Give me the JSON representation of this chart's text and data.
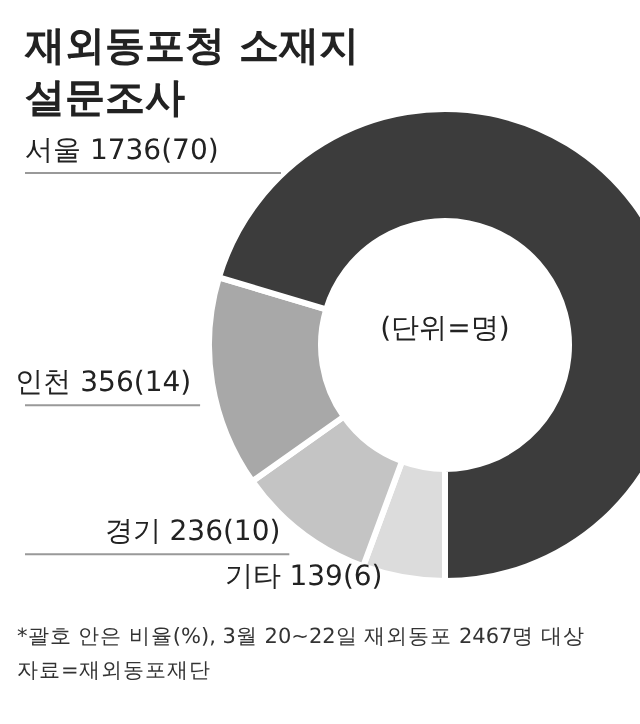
{
  "chart_data": {
    "type": "donut",
    "title": "재외동포청 소재지 설문조사",
    "categories": [
      "서울",
      "인천",
      "경기",
      "기타"
    ],
    "values": [
      1736,
      356,
      236,
      139
    ],
    "colors": [
      "#3c3c3c",
      "#a8a8a8",
      "#c4c4c4",
      "#dcdcdc"
    ],
    "value_labels": [
      "1736(70)",
      "356(14)",
      "236(10)",
      "139(6)"
    ],
    "annotations": [
      "(단위=명)",
      "*괄호 안은 비율(%), 3월 20~22일 재외동포 2467명 대상",
      "자료=재외동포재단"
    ]
  }
}
